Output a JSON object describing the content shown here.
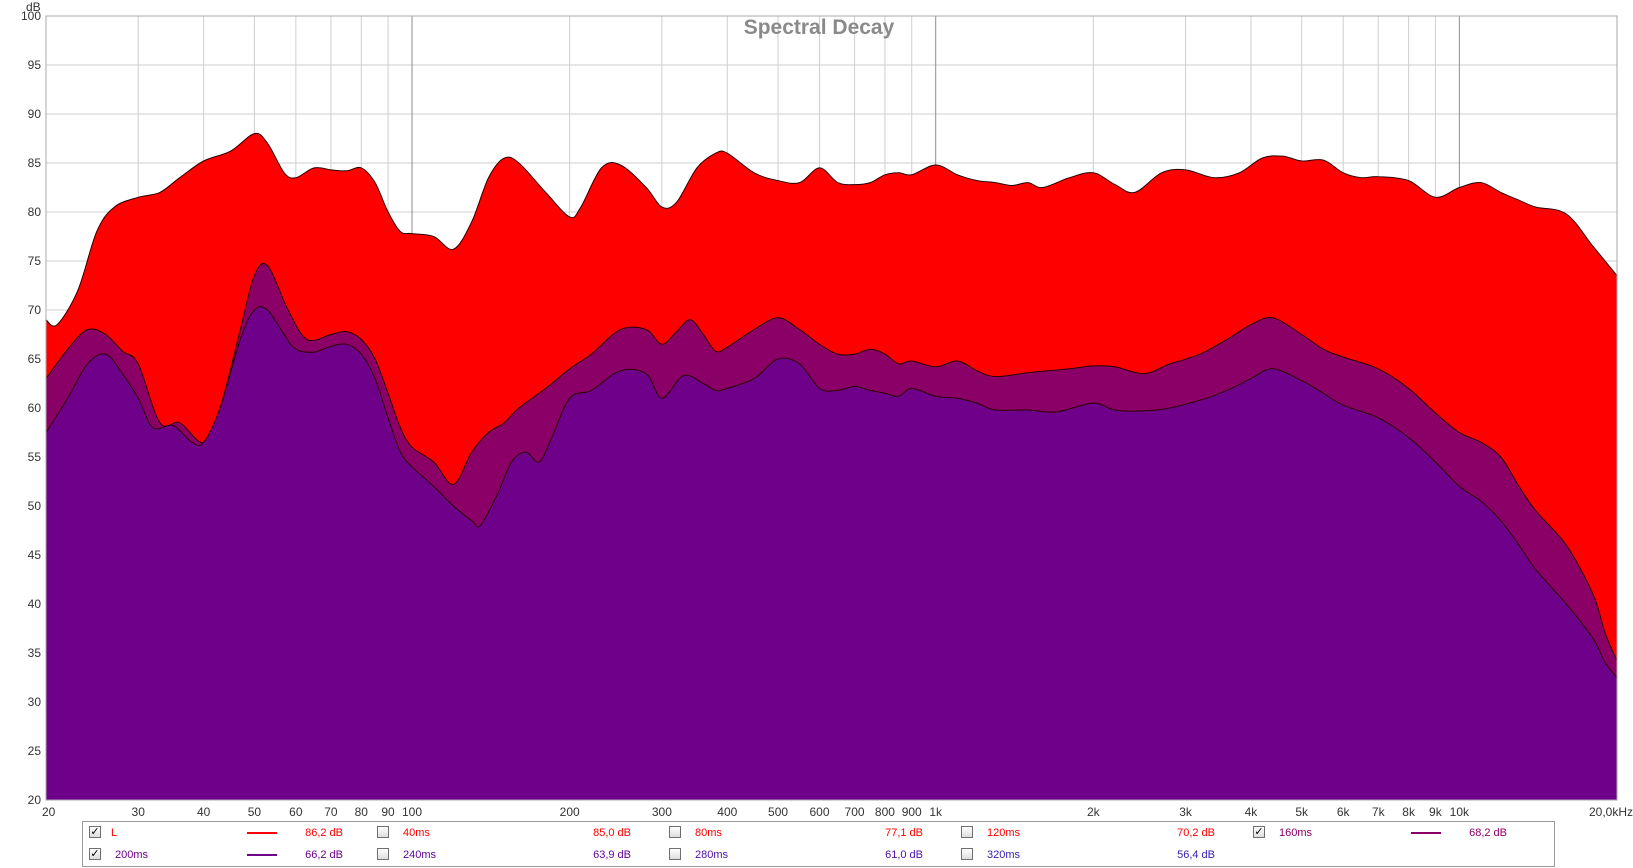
{
  "chart_data": {
    "type": "area",
    "title": "Spectral Decay",
    "ylabel": "dB",
    "ylim": [
      20,
      100
    ],
    "xlim": [
      20,
      20000
    ],
    "x_scale": "log",
    "grid": true,
    "legend_placement": "bottom",
    "y_ticks": [
      "20",
      "25",
      "30",
      "35",
      "40",
      "45",
      "50",
      "55",
      "60",
      "65",
      "70",
      "75",
      "80",
      "85",
      "90",
      "95",
      "100"
    ],
    "x_ticks": [
      {
        "value": 20,
        "label": "20"
      },
      {
        "value": 30,
        "label": "30"
      },
      {
        "value": 40,
        "label": "40"
      },
      {
        "value": 50,
        "label": "50"
      },
      {
        "value": 60,
        "label": "60"
      },
      {
        "value": 70,
        "label": "70"
      },
      {
        "value": 80,
        "label": "80"
      },
      {
        "value": 90,
        "label": "90"
      },
      {
        "value": 100,
        "label": "100"
      },
      {
        "value": 200,
        "label": "200"
      },
      {
        "value": 300,
        "label": "300"
      },
      {
        "value": 400,
        "label": "400"
      },
      {
        "value": 500,
        "label": "500"
      },
      {
        "value": 600,
        "label": "600"
      },
      {
        "value": 700,
        "label": "700"
      },
      {
        "value": 800,
        "label": "800"
      },
      {
        "value": 900,
        "label": "900"
      },
      {
        "value": 1000,
        "label": "1k"
      },
      {
        "value": 2000,
        "label": "2k"
      },
      {
        "value": 3000,
        "label": "3k"
      },
      {
        "value": 4000,
        "label": "4k"
      },
      {
        "value": 5000,
        "label": "5k"
      },
      {
        "value": 6000,
        "label": "6k"
      },
      {
        "value": 7000,
        "label": "7k"
      },
      {
        "value": 8000,
        "label": "8k"
      },
      {
        "value": 9000,
        "label": "9k"
      },
      {
        "value": 10000,
        "label": "10k"
      },
      {
        "value": 20000,
        "label": "20,0kHz"
      }
    ],
    "series": [
      {
        "name": "L",
        "color": "#ff0000",
        "points": [
          [
            20,
            69
          ],
          [
            21,
            68.5
          ],
          [
            23,
            72
          ],
          [
            25,
            78
          ],
          [
            27,
            80.5
          ],
          [
            30,
            81.5
          ],
          [
            33,
            82
          ],
          [
            36,
            83.5
          ],
          [
            40,
            85.2
          ],
          [
            45,
            86.2
          ],
          [
            50,
            88
          ],
          [
            53,
            87
          ],
          [
            57,
            84
          ],
          [
            60,
            83.5
          ],
          [
            65,
            84.5
          ],
          [
            70,
            84.3
          ],
          [
            75,
            84.2
          ],
          [
            80,
            84.5
          ],
          [
            85,
            83
          ],
          [
            90,
            80
          ],
          [
            95,
            78
          ],
          [
            100,
            77.8
          ],
          [
            110,
            77.5
          ],
          [
            120,
            76.2
          ],
          [
            130,
            79
          ],
          [
            140,
            83.5
          ],
          [
            150,
            85.5
          ],
          [
            160,
            85
          ],
          [
            180,
            82
          ],
          [
            200,
            79.5
          ],
          [
            210,
            80.5
          ],
          [
            230,
            84.5
          ],
          [
            250,
            84.8
          ],
          [
            280,
            82.5
          ],
          [
            300,
            80.5
          ],
          [
            320,
            81
          ],
          [
            350,
            84.5
          ],
          [
            380,
            86
          ],
          [
            400,
            86
          ],
          [
            450,
            84
          ],
          [
            500,
            83.2
          ],
          [
            550,
            83
          ],
          [
            600,
            84.5
          ],
          [
            650,
            83
          ],
          [
            700,
            82.8
          ],
          [
            750,
            83
          ],
          [
            800,
            83.8
          ],
          [
            850,
            84
          ],
          [
            900,
            83.8
          ],
          [
            1000,
            84.8
          ],
          [
            1100,
            83.8
          ],
          [
            1200,
            83.2
          ],
          [
            1300,
            83
          ],
          [
            1400,
            82.7
          ],
          [
            1500,
            83
          ],
          [
            1600,
            82.5
          ],
          [
            1800,
            83.5
          ],
          [
            2000,
            84
          ],
          [
            2200,
            82.8
          ],
          [
            2400,
            82
          ],
          [
            2700,
            84
          ],
          [
            3000,
            84.3
          ],
          [
            3400,
            83.5
          ],
          [
            3800,
            84
          ],
          [
            4200,
            85.5
          ],
          [
            4600,
            85.7
          ],
          [
            5000,
            85.2
          ],
          [
            5500,
            85.3
          ],
          [
            6000,
            84
          ],
          [
            6500,
            83.5
          ],
          [
            7000,
            83.6
          ],
          [
            8000,
            83.2
          ],
          [
            9000,
            81.5
          ],
          [
            10000,
            82.5
          ],
          [
            11000,
            83
          ],
          [
            12000,
            82
          ],
          [
            13000,
            81.2
          ],
          [
            14000,
            80.5
          ],
          [
            16000,
            79.8
          ],
          [
            18000,
            76.5
          ],
          [
            20000,
            73.5
          ]
        ]
      },
      {
        "name": "160ms",
        "color": "#8b0066",
        "points": [
          [
            20,
            63
          ],
          [
            22,
            66
          ],
          [
            24,
            68
          ],
          [
            26,
            67.5
          ],
          [
            28,
            65.8
          ],
          [
            30,
            64.5
          ],
          [
            33,
            58.5
          ],
          [
            36,
            58.5
          ],
          [
            40,
            56.5
          ],
          [
            43,
            60
          ],
          [
            47,
            68
          ],
          [
            50,
            73.5
          ],
          [
            53,
            74.5
          ],
          [
            58,
            70
          ],
          [
            63,
            67
          ],
          [
            70,
            67.5
          ],
          [
            75,
            67.8
          ],
          [
            80,
            67
          ],
          [
            85,
            65
          ],
          [
            90,
            61.5
          ],
          [
            95,
            58
          ],
          [
            100,
            56
          ],
          [
            110,
            54.5
          ],
          [
            120,
            52.2
          ],
          [
            130,
            55.5
          ],
          [
            140,
            57.5
          ],
          [
            150,
            58.5
          ],
          [
            160,
            60
          ],
          [
            180,
            62
          ],
          [
            200,
            64
          ],
          [
            220,
            65.5
          ],
          [
            250,
            68
          ],
          [
            280,
            68
          ],
          [
            300,
            66.5
          ],
          [
            320,
            67.8
          ],
          [
            340,
            69
          ],
          [
            360,
            67.5
          ],
          [
            380,
            65.8
          ],
          [
            400,
            66.2
          ],
          [
            450,
            68
          ],
          [
            500,
            69.2
          ],
          [
            550,
            68
          ],
          [
            600,
            66.5
          ],
          [
            650,
            65.5
          ],
          [
            700,
            65.5
          ],
          [
            750,
            66
          ],
          [
            800,
            65.5
          ],
          [
            850,
            64.5
          ],
          [
            900,
            64.8
          ],
          [
            1000,
            64.2
          ],
          [
            1100,
            64.8
          ],
          [
            1200,
            63.8
          ],
          [
            1300,
            63.2
          ],
          [
            1500,
            63.6
          ],
          [
            1800,
            64
          ],
          [
            2000,
            64.3
          ],
          [
            2200,
            64.2
          ],
          [
            2500,
            63.5
          ],
          [
            2800,
            64.5
          ],
          [
            3200,
            65.5
          ],
          [
            3600,
            67
          ],
          [
            4000,
            68.5
          ],
          [
            4400,
            69.2
          ],
          [
            5000,
            67.5
          ],
          [
            5500,
            66
          ],
          [
            6000,
            65.2
          ],
          [
            7000,
            64
          ],
          [
            8000,
            62
          ],
          [
            9000,
            59.5
          ],
          [
            10000,
            57.5
          ],
          [
            11000,
            56.5
          ],
          [
            12000,
            55
          ],
          [
            13000,
            52
          ],
          [
            14000,
            49.5
          ],
          [
            16000,
            46
          ],
          [
            18000,
            41
          ],
          [
            19000,
            37
          ],
          [
            20000,
            34.2
          ]
        ]
      },
      {
        "name": "200ms",
        "color": "#6e008a",
        "points": [
          [
            20,
            57.5
          ],
          [
            22,
            61
          ],
          [
            24,
            64.5
          ],
          [
            26,
            65.5
          ],
          [
            28,
            63.5
          ],
          [
            30,
            61
          ],
          [
            32,
            58
          ],
          [
            35,
            58.2
          ],
          [
            38,
            56.5
          ],
          [
            40,
            56.5
          ],
          [
            43,
            60
          ],
          [
            47,
            67
          ],
          [
            50,
            70
          ],
          [
            53,
            70
          ],
          [
            57,
            67.5
          ],
          [
            60,
            66
          ],
          [
            65,
            65.7
          ],
          [
            70,
            66.3
          ],
          [
            75,
            66.5
          ],
          [
            80,
            65.5
          ],
          [
            85,
            63
          ],
          [
            90,
            59
          ],
          [
            95,
            55.5
          ],
          [
            100,
            54
          ],
          [
            110,
            52
          ],
          [
            120,
            50
          ],
          [
            130,
            48.5
          ],
          [
            135,
            48
          ],
          [
            145,
            51
          ],
          [
            155,
            54.5
          ],
          [
            165,
            55.5
          ],
          [
            175,
            54.5
          ],
          [
            185,
            57
          ],
          [
            200,
            61
          ],
          [
            220,
            61.8
          ],
          [
            250,
            63.8
          ],
          [
            280,
            63.5
          ],
          [
            300,
            61
          ],
          [
            330,
            63.3
          ],
          [
            360,
            62.5
          ],
          [
            380,
            61.8
          ],
          [
            400,
            62
          ],
          [
            450,
            63
          ],
          [
            500,
            65
          ],
          [
            550,
            64.5
          ],
          [
            600,
            62
          ],
          [
            650,
            61.8
          ],
          [
            700,
            62.2
          ],
          [
            750,
            61.8
          ],
          [
            800,
            61.5
          ],
          [
            850,
            61.2
          ],
          [
            900,
            62
          ],
          [
            1000,
            61.2
          ],
          [
            1100,
            61
          ],
          [
            1200,
            60.5
          ],
          [
            1300,
            59.8
          ],
          [
            1500,
            59.8
          ],
          [
            1700,
            59.6
          ],
          [
            2000,
            60.5
          ],
          [
            2200,
            59.8
          ],
          [
            2500,
            59.7
          ],
          [
            2800,
            60
          ],
          [
            3200,
            60.8
          ],
          [
            3600,
            61.8
          ],
          [
            4000,
            63
          ],
          [
            4400,
            64
          ],
          [
            5000,
            62.8
          ],
          [
            5500,
            61.5
          ],
          [
            6000,
            60.3
          ],
          [
            7000,
            59
          ],
          [
            8000,
            57
          ],
          [
            9000,
            54.5
          ],
          [
            10000,
            52
          ],
          [
            11000,
            50.5
          ],
          [
            12000,
            48.5
          ],
          [
            13000,
            46
          ],
          [
            14000,
            43.5
          ],
          [
            16000,
            40
          ],
          [
            18000,
            36.5
          ],
          [
            19000,
            34
          ],
          [
            20000,
            32.5
          ]
        ]
      }
    ],
    "legend": [
      {
        "checked": true,
        "label": "L",
        "color": "#ff0000",
        "value": "86,2 dB"
      },
      {
        "checked": false,
        "label": "40ms",
        "color": "#ff0000",
        "value": "85,0 dB"
      },
      {
        "checked": false,
        "label": "80ms",
        "color": "#ff0000",
        "value": "77,1 dB"
      },
      {
        "checked": false,
        "label": "120ms",
        "color": "#ff0000",
        "value": "70,2 dB"
      },
      {
        "checked": true,
        "label": "160ms",
        "color": "#8b0066",
        "value": "68,2 dB"
      },
      {
        "checked": true,
        "label": "200ms",
        "color": "#6e008a",
        "value": "66,2 dB"
      },
      {
        "checked": false,
        "label": "240ms",
        "color": "#5a00a0",
        "value": "63,9 dB"
      },
      {
        "checked": false,
        "label": "280ms",
        "color": "#4a10a8",
        "value": "61,0 dB"
      },
      {
        "checked": false,
        "label": "320ms",
        "color": "#3a20b0",
        "value": "56,4 dB"
      }
    ]
  }
}
